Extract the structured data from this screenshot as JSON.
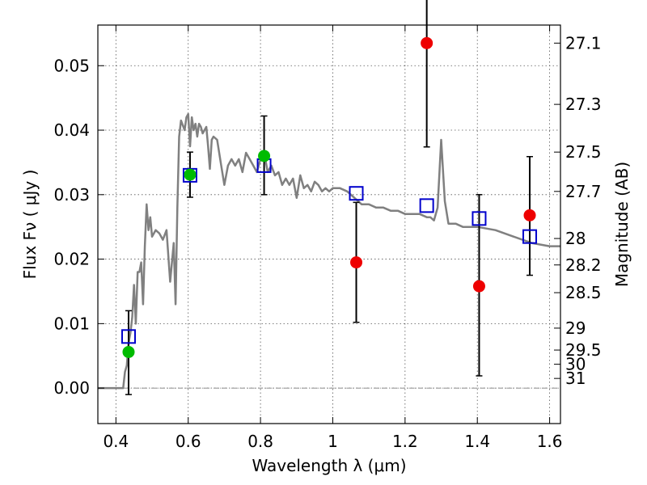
{
  "chart_data": {
    "type": "scatter",
    "xlabel": "Wavelength  λ (μm)",
    "ylabel": "Flux  Fν  ( μJy )",
    "ylabel_right": "Magnitude (AB)",
    "xlim": [
      0.35,
      1.63
    ],
    "ylim": [
      -0.0055,
      0.0563
    ],
    "x_ticks": [
      0.4,
      0.6,
      0.8,
      1.0,
      1.2,
      1.4,
      1.6
    ],
    "x_tick_labels": [
      "0.4",
      "0.6",
      "0.8",
      "1",
      "1.2",
      "1.4",
      "1.6"
    ],
    "y_ticks": [
      0.0,
      0.01,
      0.02,
      0.03,
      0.04,
      0.05
    ],
    "y_tick_labels": [
      "0.00",
      "0.01",
      "0.02",
      "0.03",
      "0.04",
      "0.05"
    ],
    "right_ticks": [
      {
        "flux": 0.0535,
        "label": "27.1"
      },
      {
        "flux": 0.044,
        "label": "27.3"
      },
      {
        "flux": 0.0366,
        "label": "27.5"
      },
      {
        "flux": 0.0305,
        "label": "27.7"
      },
      {
        "flux": 0.0232,
        "label": "28"
      },
      {
        "flux": 0.0191,
        "label": "28.2"
      },
      {
        "flux": 0.0148,
        "label": "28.5"
      },
      {
        "flux": 0.0093,
        "label": "29"
      },
      {
        "flux": 0.0059,
        "label": "29.5"
      },
      {
        "flux": 0.0037,
        "label": "30"
      },
      {
        "flux": 0.0015,
        "label": "31"
      }
    ],
    "grid": true,
    "zero_line": true,
    "series": [
      {
        "marker": "line",
        "color": "#808080",
        "x": [
          0.35,
          0.42,
          0.425,
          0.43,
          0.435,
          0.44,
          0.445,
          0.45,
          0.455,
          0.46,
          0.465,
          0.47,
          0.475,
          0.48,
          0.485,
          0.49,
          0.495,
          0.5,
          0.51,
          0.52,
          0.53,
          0.54,
          0.55,
          0.56,
          0.565,
          0.57,
          0.575,
          0.58,
          0.59,
          0.595,
          0.6,
          0.605,
          0.61,
          0.615,
          0.62,
          0.625,
          0.63,
          0.635,
          0.64,
          0.65,
          0.655,
          0.66,
          0.665,
          0.67,
          0.68,
          0.69,
          0.7,
          0.71,
          0.72,
          0.73,
          0.74,
          0.75,
          0.76,
          0.77,
          0.78,
          0.79,
          0.8,
          0.81,
          0.82,
          0.83,
          0.84,
          0.85,
          0.86,
          0.87,
          0.88,
          0.89,
          0.9,
          0.91,
          0.92,
          0.93,
          0.94,
          0.95,
          0.96,
          0.97,
          0.98,
          0.99,
          1.0,
          1.02,
          1.04,
          1.06,
          1.08,
          1.1,
          1.12,
          1.14,
          1.16,
          1.18,
          1.2,
          1.22,
          1.24,
          1.26,
          1.27,
          1.28,
          1.29,
          1.3,
          1.31,
          1.32,
          1.34,
          1.36,
          1.38,
          1.4,
          1.45,
          1.5,
          1.55,
          1.6,
          1.63
        ],
        "y": [
          0.0,
          0.0,
          0.0025,
          0.0035,
          0.007,
          0.0085,
          0.011,
          0.016,
          0.01,
          0.018,
          0.018,
          0.0195,
          0.013,
          0.022,
          0.0285,
          0.0245,
          0.0265,
          0.0235,
          0.0245,
          0.024,
          0.023,
          0.0245,
          0.0165,
          0.0225,
          0.013,
          0.028,
          0.039,
          0.0415,
          0.04,
          0.042,
          0.0425,
          0.0375,
          0.042,
          0.04,
          0.041,
          0.039,
          0.041,
          0.0405,
          0.0395,
          0.0405,
          0.0375,
          0.034,
          0.0385,
          0.039,
          0.0385,
          0.035,
          0.0315,
          0.0345,
          0.0355,
          0.0345,
          0.0355,
          0.0335,
          0.0365,
          0.0355,
          0.0345,
          0.0335,
          0.0355,
          0.0365,
          0.0335,
          0.0345,
          0.033,
          0.0335,
          0.0315,
          0.0325,
          0.0315,
          0.0325,
          0.0295,
          0.033,
          0.031,
          0.0315,
          0.0305,
          0.032,
          0.0315,
          0.0305,
          0.031,
          0.0305,
          0.031,
          0.031,
          0.0305,
          0.0295,
          0.0285,
          0.0285,
          0.028,
          0.028,
          0.0275,
          0.0275,
          0.027,
          0.027,
          0.027,
          0.0265,
          0.0265,
          0.026,
          0.028,
          0.0385,
          0.029,
          0.0255,
          0.0255,
          0.025,
          0.025,
          0.025,
          0.0245,
          0.0235,
          0.0225,
          0.022,
          0.022
        ]
      },
      {
        "marker": "square-open",
        "color": "#0000cc",
        "x": [
          0.435,
          0.605,
          0.81,
          1.065,
          1.26,
          1.405,
          1.545
        ],
        "y": [
          0.008,
          0.033,
          0.0345,
          0.0302,
          0.0283,
          0.0263,
          0.0235
        ]
      },
      {
        "marker": "circle",
        "color": "#00bb00",
        "x": [
          0.435,
          0.605,
          0.81
        ],
        "y": [
          0.0056,
          0.0331,
          0.036
        ],
        "yerr_low": [
          0.0066,
          0.0035,
          0.006
        ],
        "yerr_high": [
          0.0064,
          0.0035,
          0.0062
        ]
      },
      {
        "marker": "circle",
        "color": "#ee0000",
        "x": [
          1.065,
          1.26,
          1.405,
          1.545
        ],
        "y": [
          0.0195,
          0.0535,
          0.0158,
          0.0268
        ],
        "yerr_low": [
          0.0093,
          0.0161,
          0.0139,
          0.0093
        ],
        "yerr_high": [
          0.0093,
          0.0161,
          0.0142,
          0.0091
        ]
      }
    ]
  }
}
